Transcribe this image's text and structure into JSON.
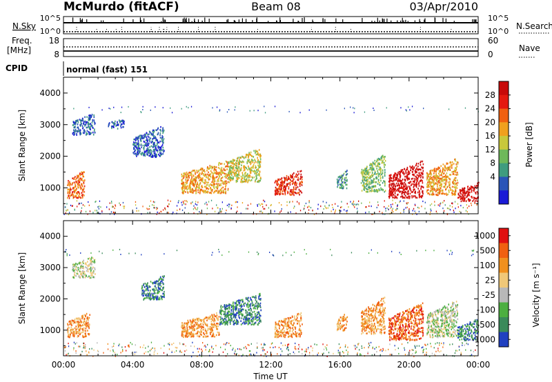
{
  "header": {
    "station": "McMurdo (fitACF)",
    "beam": "Beam 08",
    "date": "03/Apr/2010"
  },
  "noise_panel": {
    "left_label": "N.Sky",
    "left_ticks": [
      "10^5",
      "10^0"
    ],
    "right_label": "N.Search",
    "right_ticks": [
      "10^5",
      "10^0"
    ]
  },
  "freq_panel": {
    "left_label_1": "Freq.",
    "left_label_2": "[MHz]",
    "left_ticks": [
      "18",
      "8"
    ],
    "right_label": "Nave",
    "right_ticks": [
      "60",
      "0"
    ]
  },
  "cpid": {
    "label": "CPID",
    "value": "normal (fast) 151"
  },
  "chart_data": [
    {
      "type": "heatmap",
      "name": "power",
      "title": "",
      "xlabel": "",
      "ylabel": "Slant Range [km]",
      "x_range_hours": [
        0,
        24
      ],
      "ylim": [
        180,
        4500
      ],
      "yticks": [
        "1000",
        "2000",
        "3000",
        "4000"
      ],
      "colorbar": {
        "label": "Power [dB]",
        "ticks": [
          "4",
          "8",
          "12",
          "16",
          "20",
          "24",
          "28"
        ],
        "colors": [
          "#1a1ad6",
          "#2a55b8",
          "#3f9c7f",
          "#6eb85a",
          "#c8c83c",
          "#f0a01e",
          "#f06010",
          "#e41a10",
          "#c80a0a"
        ]
      },
      "regions": [
        {
          "t": [
            0.2,
            1.2
          ],
          "r": [
            700,
            1600
          ],
          "level": 6
        },
        {
          "t": [
            0.5,
            1.8
          ],
          "r": [
            2700,
            3400
          ],
          "level": 1
        },
        {
          "t": [
            2.5,
            3.5
          ],
          "r": [
            2900,
            3200
          ],
          "level": 1
        },
        {
          "t": [
            4.0,
            5.8
          ],
          "r": [
            2000,
            3000
          ],
          "level": 1
        },
        {
          "t": [
            6.8,
            9.5
          ],
          "r": [
            850,
            1900
          ],
          "level": 5
        },
        {
          "t": [
            9.5,
            11.4
          ],
          "r": [
            1200,
            2300
          ],
          "level": 4
        },
        {
          "t": [
            12.2,
            13.8
          ],
          "r": [
            800,
            1600
          ],
          "level": 7
        },
        {
          "t": [
            15.8,
            16.4
          ],
          "r": [
            1000,
            1600
          ],
          "level": 2
        },
        {
          "t": [
            17.2,
            18.6
          ],
          "r": [
            900,
            2100
          ],
          "level": 3
        },
        {
          "t": [
            18.8,
            20.8
          ],
          "r": [
            700,
            1900
          ],
          "level": 8
        },
        {
          "t": [
            21.0,
            22.8
          ],
          "r": [
            800,
            2000
          ],
          "level": 5
        },
        {
          "t": [
            22.8,
            24.0
          ],
          "r": [
            600,
            1200
          ],
          "level": 8
        }
      ]
    },
    {
      "type": "heatmap",
      "name": "velocity",
      "title": "",
      "xlabel": "Time UT",
      "ylabel": "Slant Range [km]",
      "x_range_hours": [
        0,
        24
      ],
      "ylim": [
        180,
        4500
      ],
      "yticks": [
        "1000",
        "2000",
        "3000",
        "4000"
      ],
      "xticks": [
        "00:00",
        "04:00",
        "08:00",
        "12:00",
        "16:00",
        "20:00",
        "00:00"
      ],
      "colorbar": {
        "label": "Velocity [m s⁻¹]",
        "ticks": [
          "1000",
          "500",
          "100",
          "25",
          "-25",
          "-100",
          "-500",
          "-1000"
        ],
        "colors": [
          "#2040c0",
          "#3a8a5a",
          "#4caf40",
          "#b8b8b8",
          "#f0c878",
          "#f0901e",
          "#f06010",
          "#e01010"
        ]
      },
      "regions": [
        {
          "t": [
            0.2,
            1.5
          ],
          "r": [
            800,
            1600
          ],
          "level": 5
        },
        {
          "t": [
            0.5,
            1.8
          ],
          "r": [
            2700,
            3400
          ],
          "level": 3
        },
        {
          "t": [
            4.5,
            5.8
          ],
          "r": [
            2000,
            2800
          ],
          "level": 1
        },
        {
          "t": [
            6.8,
            9.0
          ],
          "r": [
            800,
            1600
          ],
          "level": 5
        },
        {
          "t": [
            9.0,
            11.4
          ],
          "r": [
            1200,
            2200
          ],
          "level": 1
        },
        {
          "t": [
            12.2,
            13.8
          ],
          "r": [
            800,
            1600
          ],
          "level": 5
        },
        {
          "t": [
            15.8,
            16.4
          ],
          "r": [
            1000,
            1600
          ],
          "level": 5
        },
        {
          "t": [
            17.2,
            18.6
          ],
          "r": [
            900,
            2100
          ],
          "level": 5
        },
        {
          "t": [
            18.8,
            20.8
          ],
          "r": [
            700,
            1900
          ],
          "level": 6
        },
        {
          "t": [
            21.0,
            22.8
          ],
          "r": [
            800,
            2000
          ],
          "level": 3
        },
        {
          "t": [
            22.8,
            24.0
          ],
          "r": [
            700,
            1400
          ],
          "level": 1
        }
      ]
    }
  ]
}
